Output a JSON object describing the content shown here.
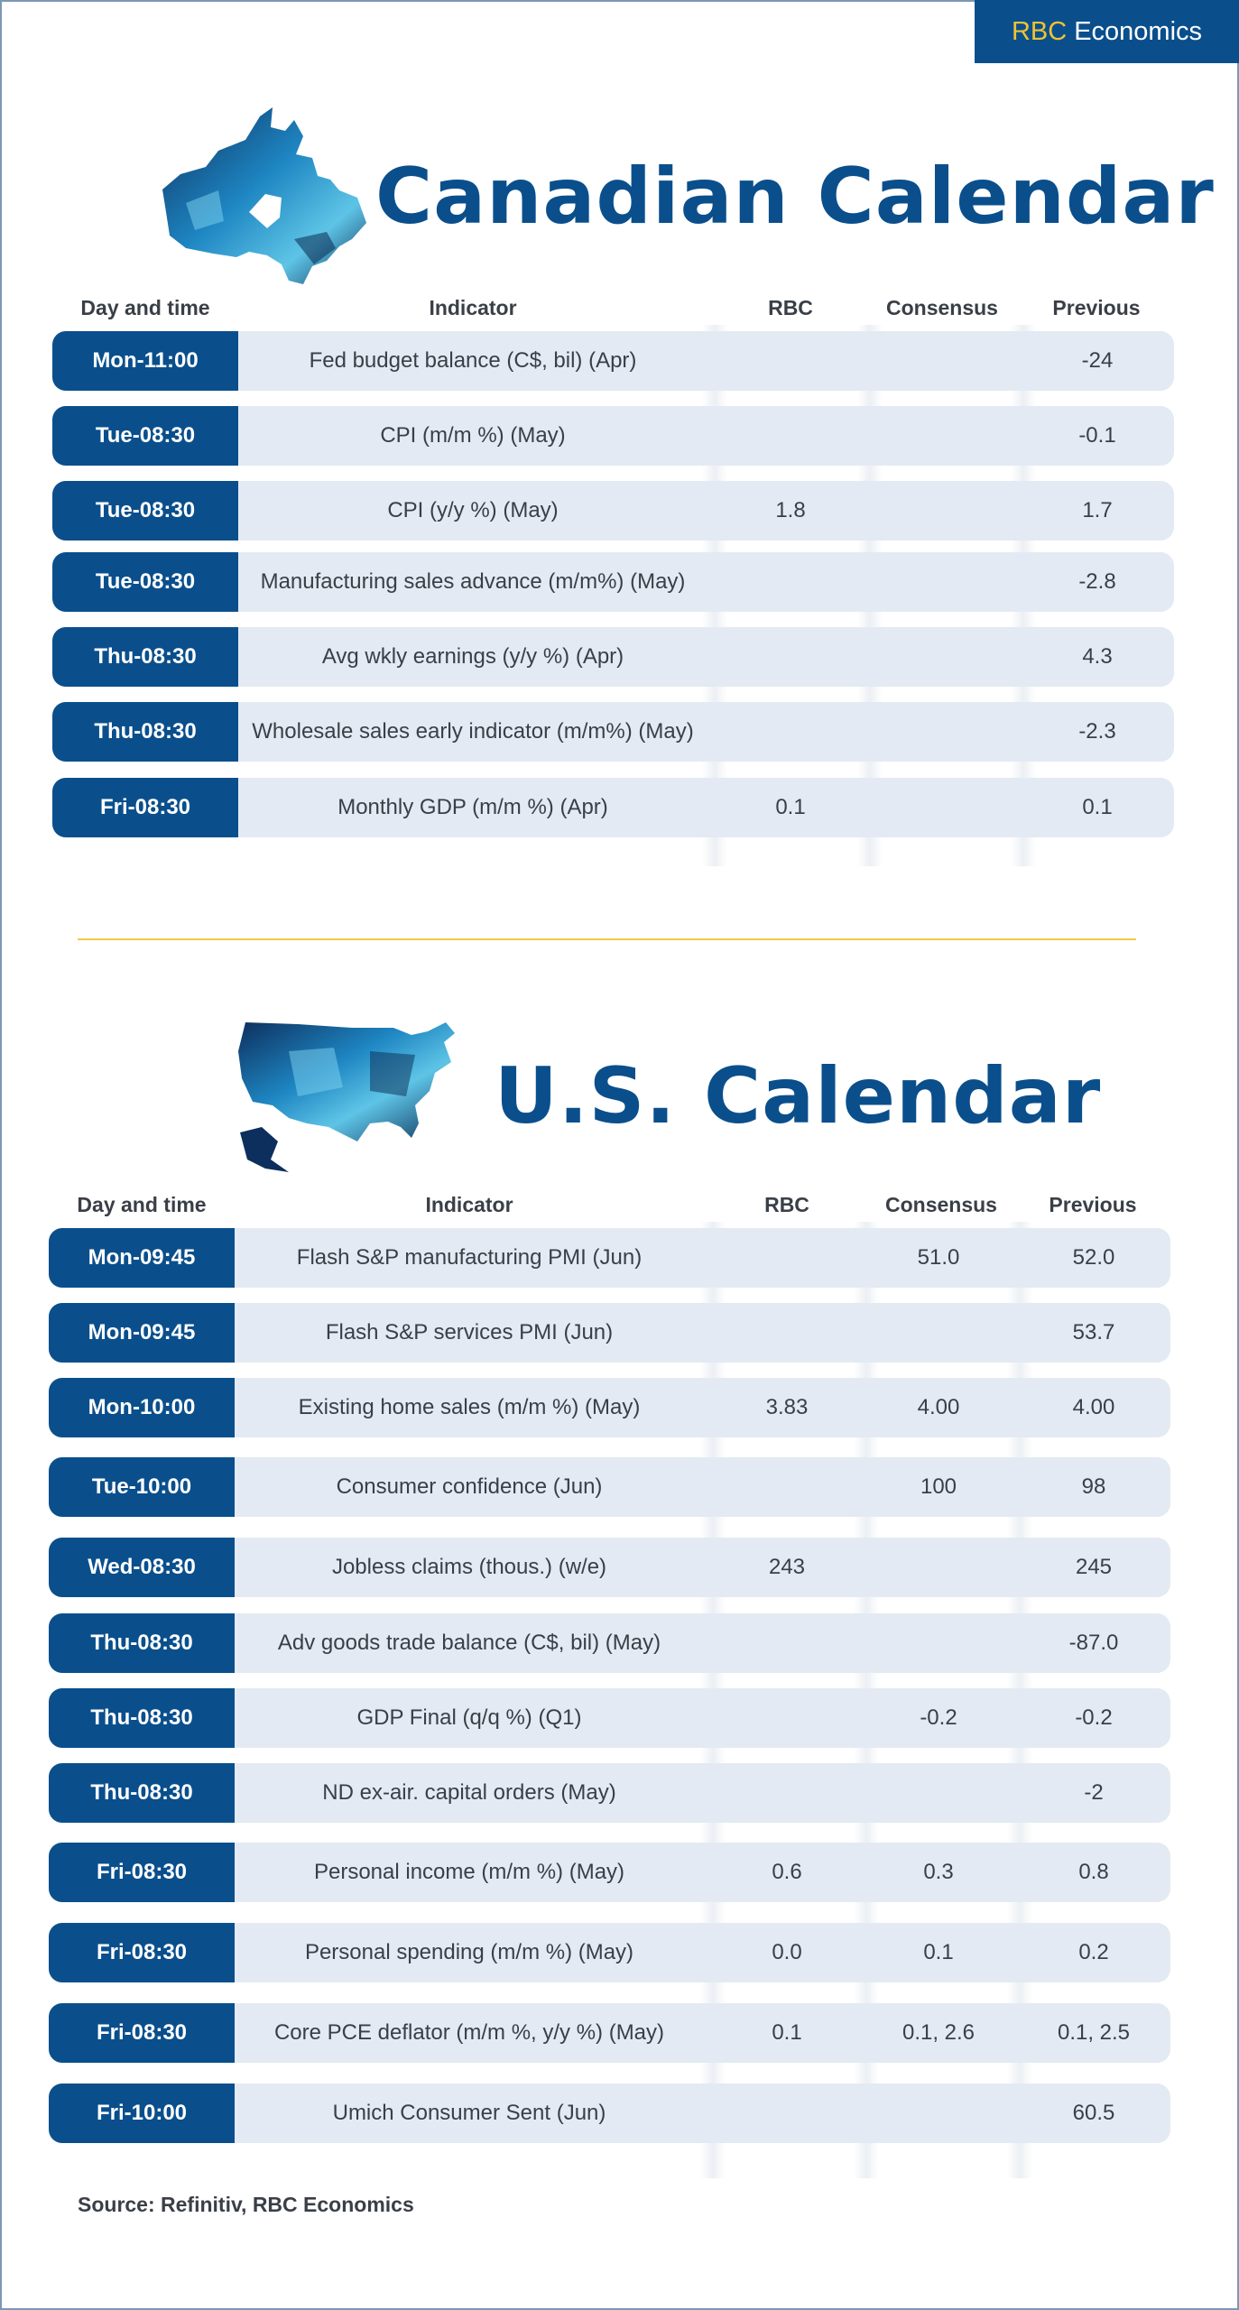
{
  "brand": {
    "prefix": "RBC",
    "name": "Economics"
  },
  "colors": {
    "navy": "#0a4f8c",
    "gold": "#f1c232",
    "row_bg": "#e3eaf3"
  },
  "canada": {
    "title": "Canadian Calendar",
    "map_icon": "canada-map-icon",
    "headers": {
      "day": "Day and time",
      "indicator": "Indicator",
      "rbc": "RBC",
      "consensus": "Consensus",
      "previous": "Previous"
    },
    "rows": [
      {
        "day": "Mon-11:00",
        "indicator": "Fed budget balance (C$, bil) (Apr)",
        "rbc": "",
        "consensus": "",
        "previous": "-24"
      },
      {
        "day": "Tue-08:30",
        "indicator": "CPI (m/m %) (May)",
        "rbc": "",
        "consensus": "",
        "previous": "-0.1"
      },
      {
        "day": "Tue-08:30",
        "indicator": "CPI (y/y %) (May)",
        "rbc": "1.8",
        "consensus": "",
        "previous": "1.7"
      },
      {
        "day": "Tue-08:30",
        "indicator": "Manufacturing sales advance (m/m%) (May)",
        "rbc": "",
        "consensus": "",
        "previous": "-2.8"
      },
      {
        "day": "Thu-08:30",
        "indicator": "Avg wkly earnings (y/y %) (Apr)",
        "rbc": "",
        "consensus": "",
        "previous": "4.3"
      },
      {
        "day": "Thu-08:30",
        "indicator": "Wholesale sales early indicator (m/m%) (May)",
        "rbc": "",
        "consensus": "",
        "previous": "-2.3"
      },
      {
        "day": "Fri-08:30",
        "indicator": "Monthly GDP (m/m %) (Apr)",
        "rbc": "0.1",
        "consensus": "",
        "previous": "0.1"
      }
    ]
  },
  "us": {
    "title": "U.S. Calendar",
    "map_icon": "usa-map-icon",
    "headers": {
      "day": "Day and time",
      "indicator": "Indicator",
      "rbc": "RBC",
      "consensus": "Consensus",
      "previous": "Previous"
    },
    "rows": [
      {
        "day": "Mon-09:45",
        "indicator": "Flash S&P manufacturing PMI (Jun)",
        "rbc": "",
        "consensus": "51.0",
        "previous": "52.0"
      },
      {
        "day": "Mon-09:45",
        "indicator": "Flash S&P services PMI (Jun)",
        "rbc": "",
        "consensus": "",
        "previous": "53.7"
      },
      {
        "day": "Mon-10:00",
        "indicator": "Existing home sales (m/m %) (May)",
        "rbc": "3.83",
        "consensus": "4.00",
        "previous": "4.00"
      },
      {
        "day": "Tue-10:00",
        "indicator": "Consumer confidence (Jun)",
        "rbc": "",
        "consensus": "100",
        "previous": "98"
      },
      {
        "day": "Wed-08:30",
        "indicator": "Jobless claims (thous.) (w/e)",
        "rbc": "243",
        "consensus": "",
        "previous": "245"
      },
      {
        "day": "Thu-08:30",
        "indicator": "Adv goods trade balance (C$, bil) (May)",
        "rbc": "",
        "consensus": "",
        "previous": "-87.0"
      },
      {
        "day": "Thu-08:30",
        "indicator": "GDP Final (q/q %) (Q1)",
        "rbc": "",
        "consensus": "-0.2",
        "previous": "-0.2"
      },
      {
        "day": "Thu-08:30",
        "indicator": "ND ex-air. capital orders (May)",
        "rbc": "",
        "consensus": "",
        "previous": "-2"
      },
      {
        "day": "Fri-08:30",
        "indicator": "Personal income (m/m %) (May)",
        "rbc": "0.6",
        "consensus": "0.3",
        "previous": "0.8"
      },
      {
        "day": "Fri-08:30",
        "indicator": "Personal spending (m/m %) (May)",
        "rbc": "0.0",
        "consensus": "0.1",
        "previous": "0.2"
      },
      {
        "day": "Fri-08:30",
        "indicator": "Core PCE deflator (m/m %, y/y %) (May)",
        "rbc": "0.1",
        "consensus": "0.1, 2.6",
        "previous": "0.1, 2.5"
      },
      {
        "day": "Fri-10:00",
        "indicator": "Umich Consumer Sent (Jun)",
        "rbc": "",
        "consensus": "",
        "previous": "60.5"
      }
    ]
  },
  "source": "Source: Refinitiv,  RBC Economics"
}
